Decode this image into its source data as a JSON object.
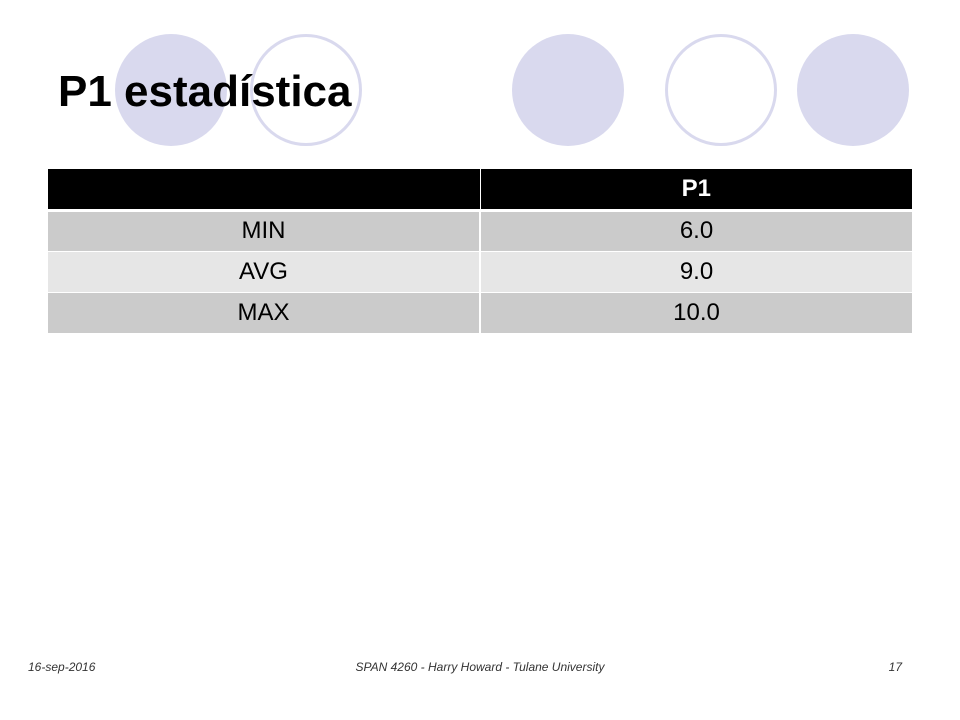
{
  "slide": {
    "title": "P1 estadística"
  },
  "table": {
    "headers": [
      "",
      "P1"
    ],
    "rows": [
      {
        "label": "MIN",
        "value": "6.0"
      },
      {
        "label": "AVG",
        "value": "9.0"
      },
      {
        "label": "MAX",
        "value": "10.0"
      }
    ]
  },
  "footer": {
    "date": "16-sep-2016",
    "course": "SPAN 4260 - Harry Howard - Tulane University",
    "page_number": "17"
  },
  "colors": {
    "circle_fill": "#d9d9ee",
    "header_background": "#000000",
    "row_dark": "#cbcbcb",
    "row_light": "#e6e6e6"
  }
}
